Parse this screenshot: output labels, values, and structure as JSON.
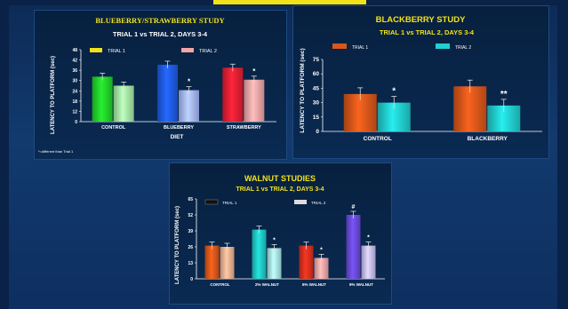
{
  "chart_data": [
    {
      "type": "bar",
      "title": "BLUEBERRY/STRAWBERRY STUDY",
      "subtitle": "TRIAL 1 vs TRIAL 2, DAYS 3-4",
      "xlabel": "DIET",
      "ylabel": "LATENCY TO PLATFORM (sec)",
      "ylim": [
        0,
        48
      ],
      "yticks": [
        "0",
        "12",
        "18",
        "24",
        "30",
        "36",
        "42",
        "48"
      ],
      "categories": [
        "CONTROL",
        "BLUEBERRY",
        "STRAWBERRY"
      ],
      "series": [
        {
          "name": "TRIAL 1",
          "values": [
            30,
            38,
            36
          ]
        },
        {
          "name": "TRIAL 2",
          "values": [
            24,
            21,
            28
          ]
        }
      ],
      "annotations": [
        "*",
        "*"
      ],
      "footnote": "*=different than Trial 1",
      "colors": {
        "control_t1": "#22d22a",
        "control_t2": "#a6eea6",
        "blueberry_t1": "#1f5be8",
        "blueberry_t2": "#a6b8ff",
        "strawberry_t1": "#e81f33",
        "strawberry_t2": "#f3a6a6",
        "title": "#f2e21a",
        "legend_t1": "#f2e21a",
        "legend_t2": "#f3a6a6"
      },
      "grid": false,
      "legend": "top"
    },
    {
      "type": "bar",
      "title": "BLACKBERRY STUDY",
      "subtitle": "TRIAL 1 vs TRIAL 2, DAYS 3-4",
      "xlabel": "",
      "ylabel": "LATENCY TO PLATFORM (sec)",
      "ylim": [
        0,
        75
      ],
      "yticks": [
        "0",
        "15",
        "30",
        "45",
        "60",
        "75"
      ],
      "categories": [
        "CONTROL",
        "BLACKBERRY"
      ],
      "series": [
        {
          "name": "TRIAL 1",
          "values": [
            39,
            47
          ]
        },
        {
          "name": "TRIAL 2",
          "values": [
            30,
            27
          ]
        }
      ],
      "annotations": [
        "*",
        "**"
      ],
      "colors": {
        "t1": "#d9571a",
        "t2": "#22cfd0",
        "title": "#f2e21a"
      },
      "grid": false,
      "legend": "top"
    },
    {
      "type": "bar",
      "title": "WALNUT STUDIES",
      "subtitle": "TRIAL 1 vs TRIAL 2, DAYS 3-4",
      "xlabel": "",
      "ylabel": "LATENCY TO PLATFORM (sec)",
      "ylim": [
        0,
        65
      ],
      "yticks": [
        "0",
        "13",
        "26",
        "39",
        "52",
        "65"
      ],
      "categories": [
        "CONTROL",
        "2% WALNUT",
        "6% WALNUT",
        "9% WALNUT"
      ],
      "series": [
        {
          "name": "TRIAL 1",
          "values": [
            27,
            40,
            27,
            52
          ]
        },
        {
          "name": "TRIAL 2",
          "values": [
            26,
            25,
            17,
            27
          ]
        }
      ],
      "annotations": [
        "*",
        "*",
        "#",
        "*"
      ],
      "colors": {
        "control_t1": "#d9571a",
        "control_t2": "#f0b090",
        "w2_t1": "#20c8c4",
        "w2_t2": "#a8e8e6",
        "w6_t1": "#d8301e",
        "w6_t2": "#f3a6a6",
        "w9_t1": "#6a4ad8",
        "w9_t2": "#c6bef3",
        "title": "#f2e21a"
      },
      "grid": false,
      "legend": "top"
    }
  ]
}
